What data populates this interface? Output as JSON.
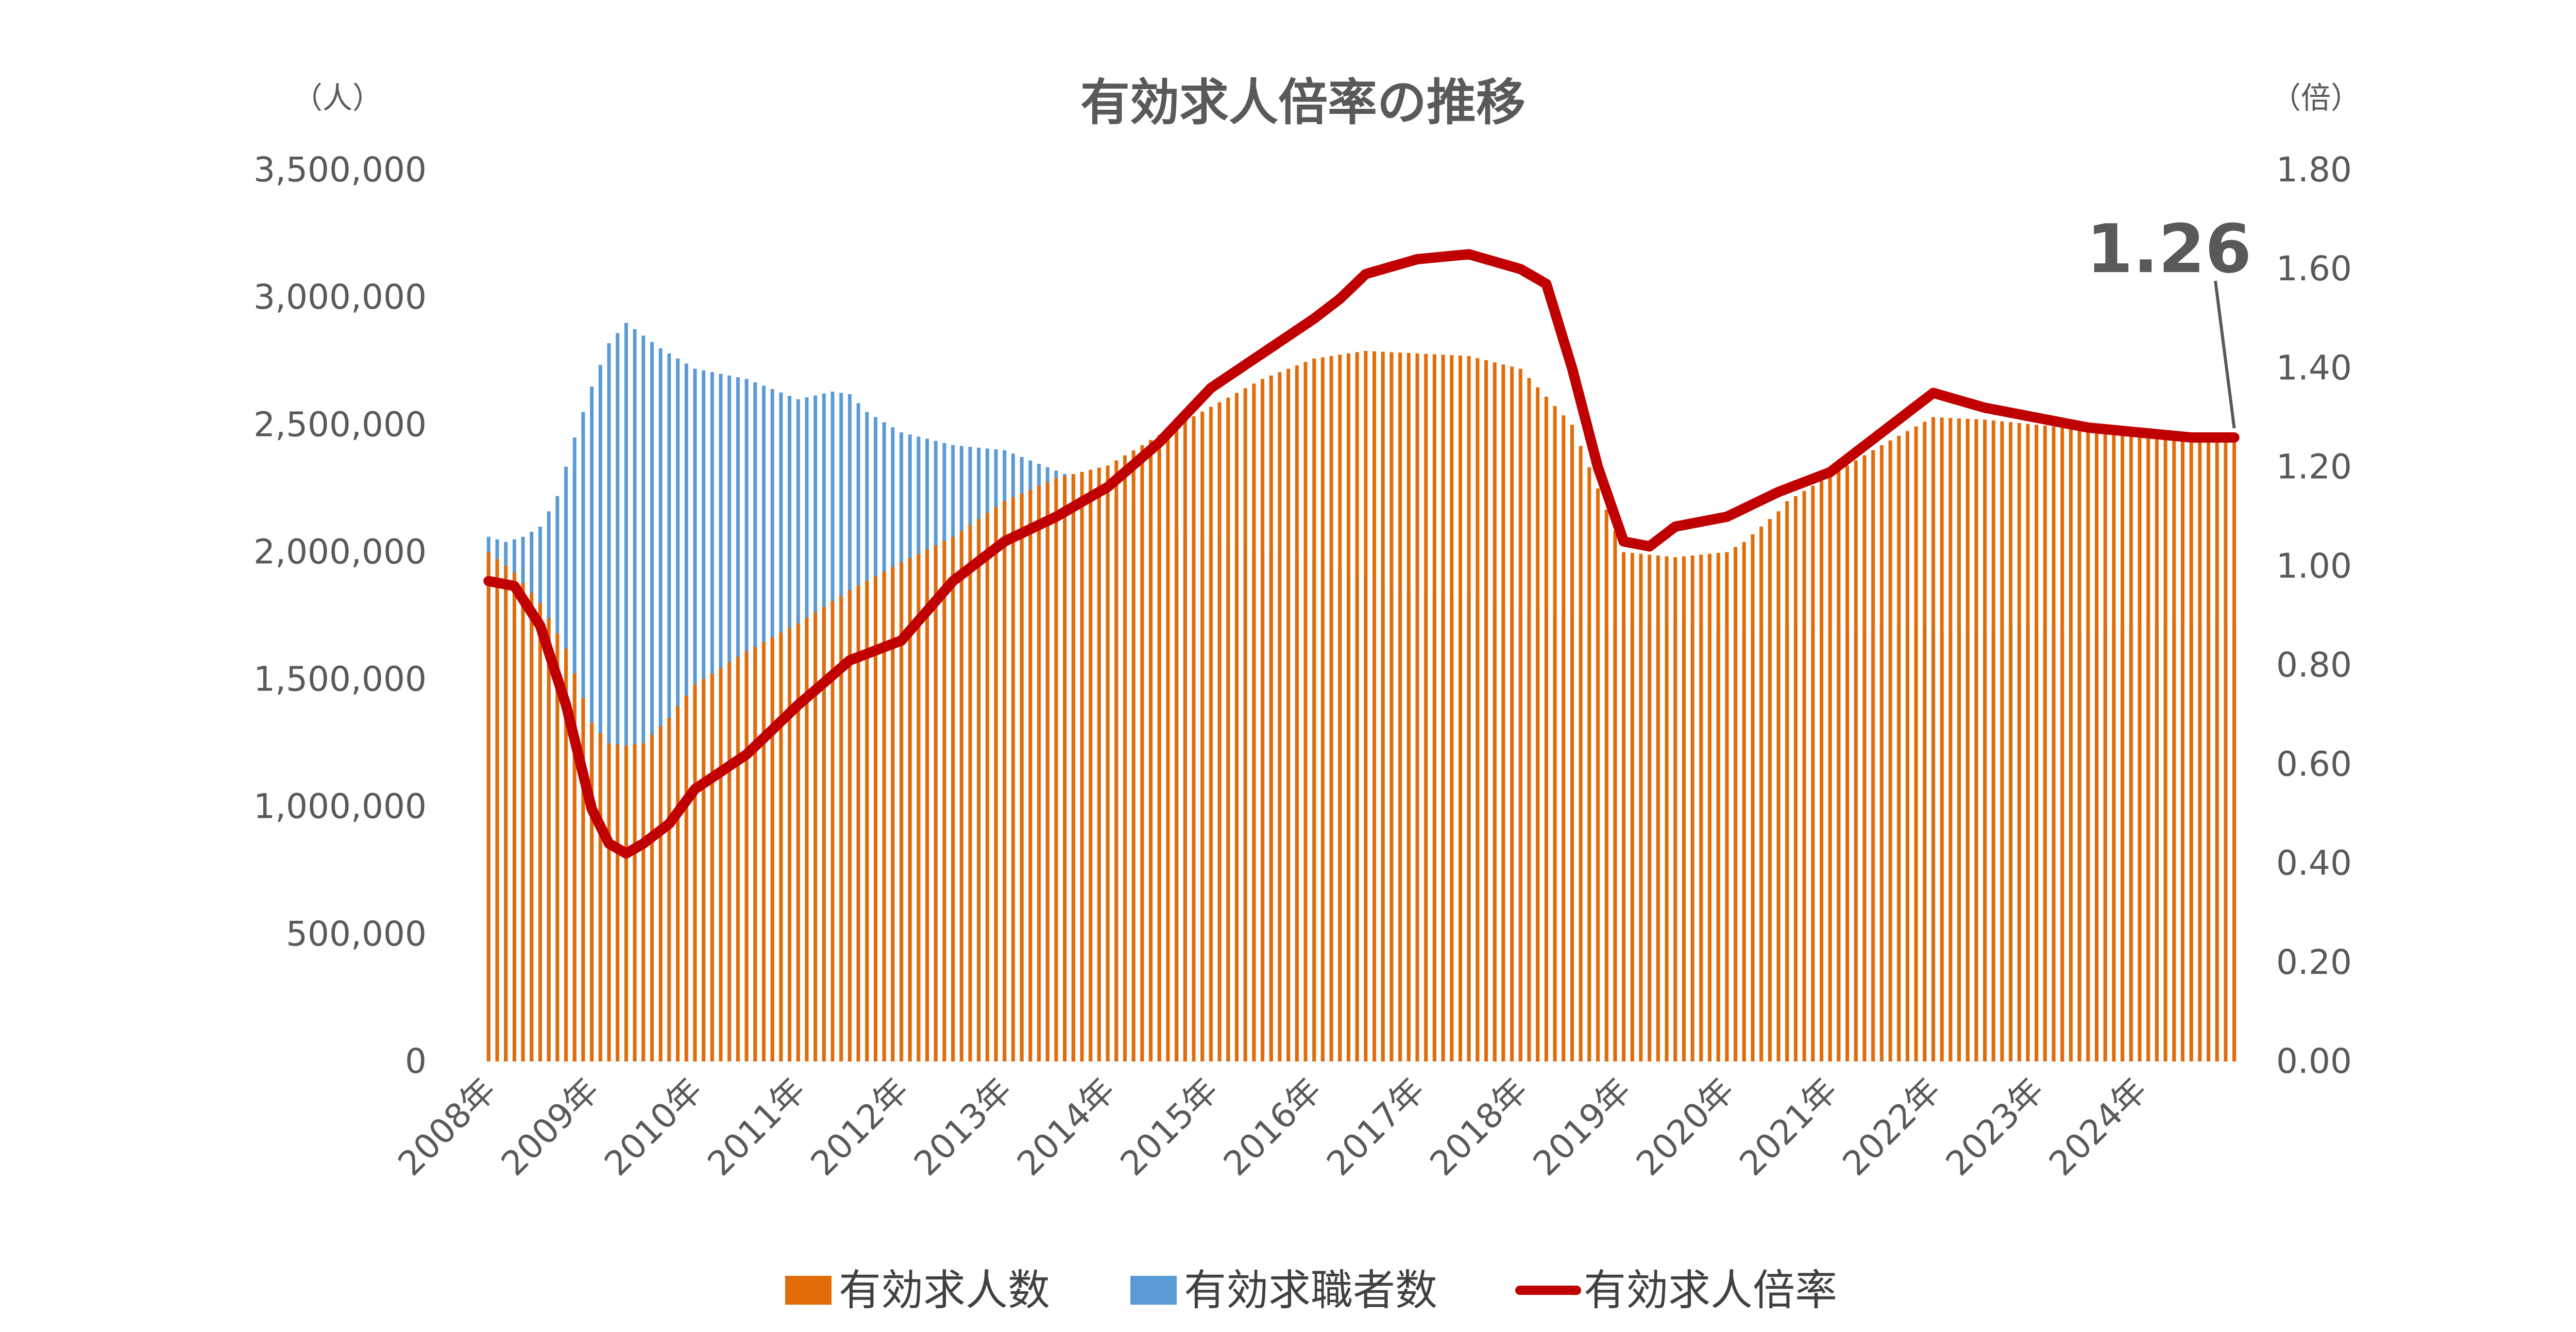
{
  "chart_data": {
    "type": "bar+line",
    "title": "有効求人倍率の推移",
    "left_axis_unit": "（人）",
    "right_axis_unit": "（倍）",
    "left_ylim": [
      0,
      3500000
    ],
    "right_ylim": [
      0,
      1.8
    ],
    "left_ticks": [
      "0",
      "500,000",
      "1,000,000",
      "1,500,000",
      "2,000,000",
      "2,500,000",
      "3,000,000",
      "3,500,000"
    ],
    "right_ticks": [
      "0.00",
      "0.20",
      "0.40",
      "0.60",
      "0.80",
      "1.00",
      "1.20",
      "1.40",
      "1.60",
      "1.80"
    ],
    "x_labels": [
      "2008年",
      "2009年",
      "2010年",
      "2011年",
      "2012年",
      "2013年",
      "2014年",
      "2015年",
      "2016年",
      "2017年",
      "2018年",
      "2019年",
      "2020年",
      "2021年",
      "2022年",
      "2023年",
      "2024年"
    ],
    "months_per_year": 12,
    "series": [
      {
        "name": "有効求人数",
        "color": "#E36C0A",
        "axis": "left",
        "anchor_months": [
          0,
          3,
          6,
          9,
          12,
          14,
          16,
          18,
          21,
          24,
          30,
          36,
          42,
          48,
          54,
          60,
          66,
          72,
          78,
          84,
          90,
          96,
          102,
          108,
          114,
          120,
          126,
          132,
          138,
          144,
          146,
          148,
          150,
          151,
          153,
          156,
          159,
          162,
          168,
          174,
          180,
          186,
          192,
          195,
          198,
          201,
          203
        ],
        "anchor_values": [
          2000000,
          1920000,
          1800000,
          1620000,
          1330000,
          1250000,
          1240000,
          1250000,
          1350000,
          1480000,
          1610000,
          1720000,
          1850000,
          1960000,
          2060000,
          2200000,
          2290000,
          2340000,
          2460000,
          2570000,
          2680000,
          2760000,
          2790000,
          2780000,
          2770000,
          2720000,
          2500000,
          2000000,
          1980000,
          2000000,
          2040000,
          2100000,
          2160000,
          2200000,
          2240000,
          2300000,
          2360000,
          2420000,
          2530000,
          2520000,
          2500000,
          2480000,
          2460000,
          2450000,
          2440000,
          2450000,
          2430000
        ]
      },
      {
        "name": "有効求職者数",
        "color": "#5B9BD5",
        "axis": "left",
        "anchor_months": [
          0,
          2,
          4,
          6,
          8,
          10,
          12,
          14,
          16,
          18,
          20,
          22,
          24,
          30,
          36,
          40,
          42,
          44,
          48,
          54,
          60,
          66,
          72,
          78,
          84,
          90,
          96,
          102,
          108,
          114,
          120,
          126,
          129,
          132,
          138,
          144,
          150,
          156,
          162,
          168,
          174,
          180,
          186,
          192,
          198,
          203
        ],
        "anchor_values": [
          2060000,
          2040000,
          2060000,
          2100000,
          2220000,
          2450000,
          2650000,
          2820000,
          2900000,
          2850000,
          2800000,
          2760000,
          2720000,
          2680000,
          2600000,
          2630000,
          2620000,
          2550000,
          2470000,
          2420000,
          2400000,
          2320000,
          2240000,
          2100000,
          2050000,
          2020000,
          1960000,
          1900000,
          1850000,
          1820000,
          1780000,
          1750000,
          1700000,
          1740000,
          1730000,
          1700000,
          1720000,
          1700000,
          1720000,
          1700000,
          1700000,
          1710000,
          1700000,
          1720000,
          1730000,
          1720000
        ],
        "anchor_values_note": "blue visible portions reflect job seekers; values read off left axis"
      },
      {
        "name": "有効求人倍率",
        "color": "#C00000",
        "axis": "right",
        "anchor_months": [
          0,
          3,
          6,
          9,
          12,
          14,
          16,
          18,
          21,
          24,
          30,
          36,
          42,
          48,
          54,
          60,
          66,
          72,
          78,
          84,
          90,
          96,
          99,
          102,
          108,
          114,
          120,
          123,
          126,
          129,
          132,
          135,
          138,
          144,
          150,
          156,
          162,
          168,
          174,
          180,
          186,
          192,
          198,
          203
        ],
        "anchor_values": [
          0.97,
          0.96,
          0.88,
          0.72,
          0.51,
          0.44,
          0.42,
          0.44,
          0.48,
          0.55,
          0.62,
          0.72,
          0.81,
          0.85,
          0.97,
          1.05,
          1.1,
          1.16,
          1.25,
          1.36,
          1.43,
          1.5,
          1.54,
          1.59,
          1.62,
          1.63,
          1.6,
          1.57,
          1.4,
          1.2,
          1.05,
          1.04,
          1.08,
          1.1,
          1.15,
          1.19,
          1.27,
          1.35,
          1.32,
          1.3,
          1.28,
          1.27,
          1.26,
          1.26
        ]
      }
    ],
    "bars": {
      "orange_heights": "有効求人数 by month",
      "blue_heights": "有効求職者数 by month"
    },
    "annotation": {
      "text": "1.26",
      "points_to": "last value of 有効求人倍率"
    },
    "legend": [
      "有効求人数",
      "有効求職者数",
      "有効求人倍率"
    ],
    "legend_position": "bottom",
    "grid": false
  }
}
